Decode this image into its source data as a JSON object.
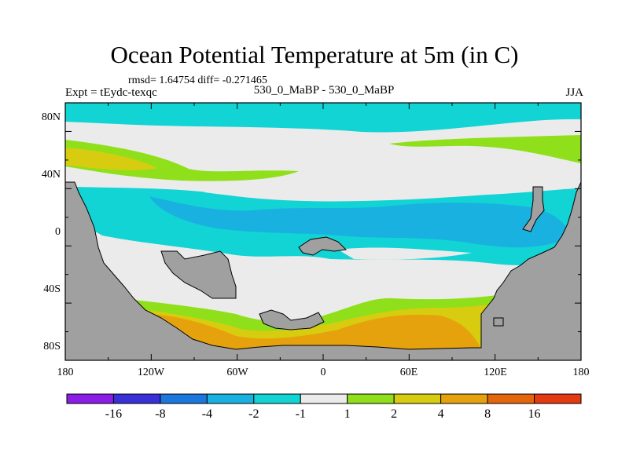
{
  "title": "Ocean Potential Temperature at 5m (in C)",
  "stats": "rmsd= 1.64754 diff= -0.271465",
  "experiment": "Expt = tEydc-texqc",
  "comparison": "530_0_MaBP - 530_0_MaBP",
  "season": "JJA",
  "y_ticks": [
    "80N",
    "40N",
    "0",
    "40S",
    "80S"
  ],
  "x_ticks": [
    "180",
    "120W",
    "60W",
    "0",
    "60E",
    "120E",
    "180"
  ],
  "colorbar": {
    "labels": [
      "-16",
      "-8",
      "-4",
      "-2",
      "-1",
      "1",
      "2",
      "4",
      "8",
      "16"
    ],
    "colors": [
      "#8a1ee6",
      "#3a30d8",
      "#1a78dc",
      "#19b2e0",
      "#12d4d4",
      "#ebebeb",
      "#8fe01a",
      "#d8cc10",
      "#e6a20c",
      "#e4660c",
      "#e43a10"
    ]
  },
  "palette": {
    "land": "#a0a0a0",
    "neutral": "#ebebeb",
    "cyan": "#12d4d4",
    "blue": "#19b2e0",
    "green": "#8fe01a",
    "yellow": "#d8cc10",
    "orange": "#e6a20c"
  }
}
